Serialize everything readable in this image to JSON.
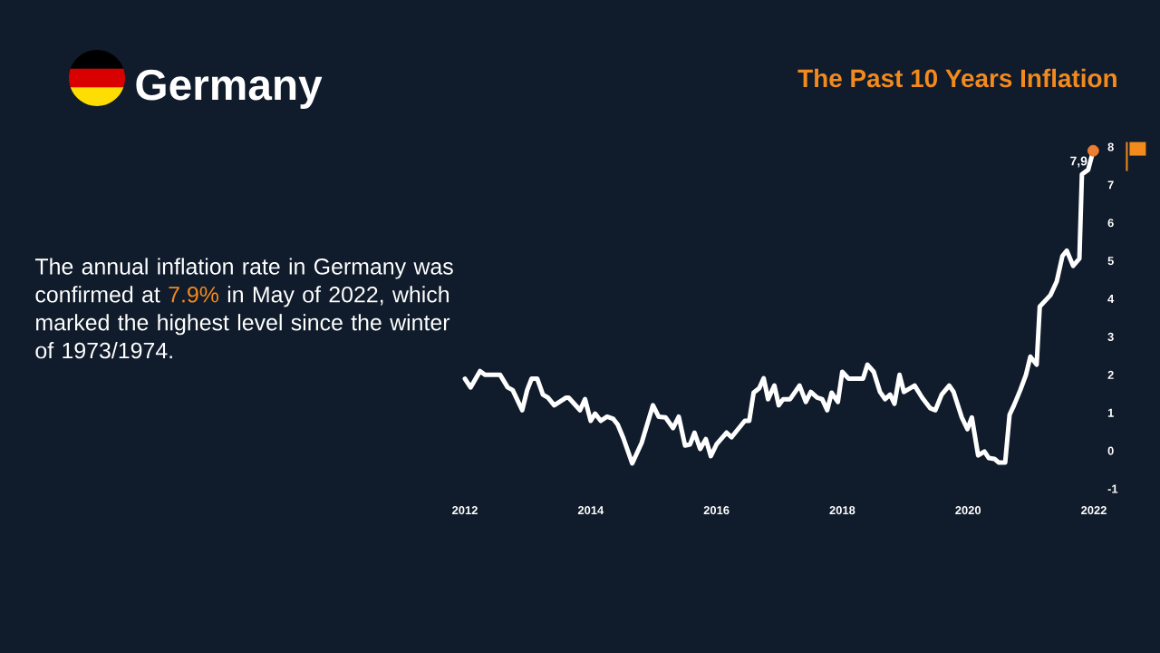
{
  "chart_data": {
    "type": "line",
    "title": "Germany",
    "subtitle": "The Past 10 Years Inflation",
    "annotations": [
      "The annual inflation rate in Germany was confirmed at",
      "7.9%",
      "in May of 2022, which marked the highest level since the winter of 1973/1974.",
      {
        "text": "7,9",
        "x": 2021.99,
        "y": 7.9
      }
    ],
    "xlim": [
      2012,
      2022
    ],
    "xticks": [
      2012,
      2014,
      2016,
      2018,
      2020,
      2022
    ],
    "ylim": [
      -1,
      8
    ],
    "yticks": [
      -1,
      0,
      1,
      2,
      3,
      4,
      5,
      6,
      7,
      8
    ],
    "series": [
      {
        "color": "#ffffff",
        "marker": "none",
        "line_style": "solid",
        "x": [
          2012.0,
          2012.09,
          2012.24,
          2012.32,
          2012.56,
          2012.68,
          2012.76,
          2012.91,
          2012.99,
          2013.06,
          2013.15,
          2013.24,
          2013.32,
          2013.42,
          2013.61,
          2013.65,
          2013.83,
          2013.91,
          2014.0,
          2014.07,
          2014.16,
          2014.26,
          2014.36,
          2014.43,
          2014.52,
          2014.66,
          2014.81,
          2014.99,
          2015.08,
          2015.19,
          2015.31,
          2015.4,
          2015.5,
          2015.58,
          2015.65,
          2015.74,
          2015.83,
          2015.91,
          2016.0,
          2016.16,
          2016.24,
          2016.45,
          2016.52,
          2016.59,
          2016.68,
          2016.75,
          2016.82,
          2016.92,
          2016.99,
          2017.06,
          2017.17,
          2017.32,
          2017.42,
          2017.5,
          2017.6,
          2017.68,
          2017.76,
          2017.83,
          2017.93,
          2018.0,
          2018.1,
          2018.33,
          2018.4,
          2018.5,
          2018.6,
          2018.68,
          2018.76,
          2018.83,
          2018.91,
          2018.98,
          2019.15,
          2019.27,
          2019.4,
          2019.48,
          2019.58,
          2019.7,
          2019.77,
          2019.9,
          2019.99,
          2020.06,
          2020.16,
          2020.26,
          2020.33,
          2020.42,
          2020.49,
          2020.59,
          2020.66,
          2020.73,
          2020.83,
          2020.92,
          2020.99,
          2021.09,
          2021.14,
          2021.31,
          2021.41,
          2021.5,
          2021.57,
          2021.67,
          2021.77,
          2021.81,
          2021.91,
          2021.99
        ],
        "values": [
          1.9,
          1.67,
          2.1,
          2.0,
          2.0,
          1.67,
          1.6,
          1.07,
          1.6,
          1.9,
          1.9,
          1.48,
          1.4,
          1.2,
          1.4,
          1.4,
          1.07,
          1.36,
          0.79,
          0.98,
          0.79,
          0.9,
          0.84,
          0.69,
          0.33,
          -0.33,
          0.21,
          1.2,
          0.9,
          0.88,
          0.6,
          0.9,
          0.14,
          0.17,
          0.48,
          0.05,
          0.31,
          -0.14,
          0.17,
          0.48,
          0.36,
          0.79,
          0.79,
          1.53,
          1.65,
          1.91,
          1.36,
          1.72,
          1.2,
          1.36,
          1.36,
          1.72,
          1.29,
          1.55,
          1.4,
          1.36,
          1.07,
          1.53,
          1.29,
          2.08,
          1.9,
          1.9,
          2.27,
          2.08,
          1.55,
          1.36,
          1.48,
          1.24,
          2.0,
          1.55,
          1.72,
          1.4,
          1.12,
          1.07,
          1.48,
          1.72,
          1.55,
          0.88,
          0.57,
          0.88,
          -0.12,
          -0.02,
          -0.19,
          -0.21,
          -0.31,
          -0.31,
          0.95,
          1.2,
          1.6,
          2.0,
          2.48,
          2.27,
          3.8,
          4.1,
          4.46,
          5.13,
          5.27,
          4.87,
          5.06,
          7.28,
          7.4,
          7.9
        ]
      },
      {
        "type": "scatter",
        "color": "#ed7d31",
        "marker": "circle",
        "x": [
          2021.99
        ],
        "values": [
          7.9
        ]
      }
    ]
  }
}
